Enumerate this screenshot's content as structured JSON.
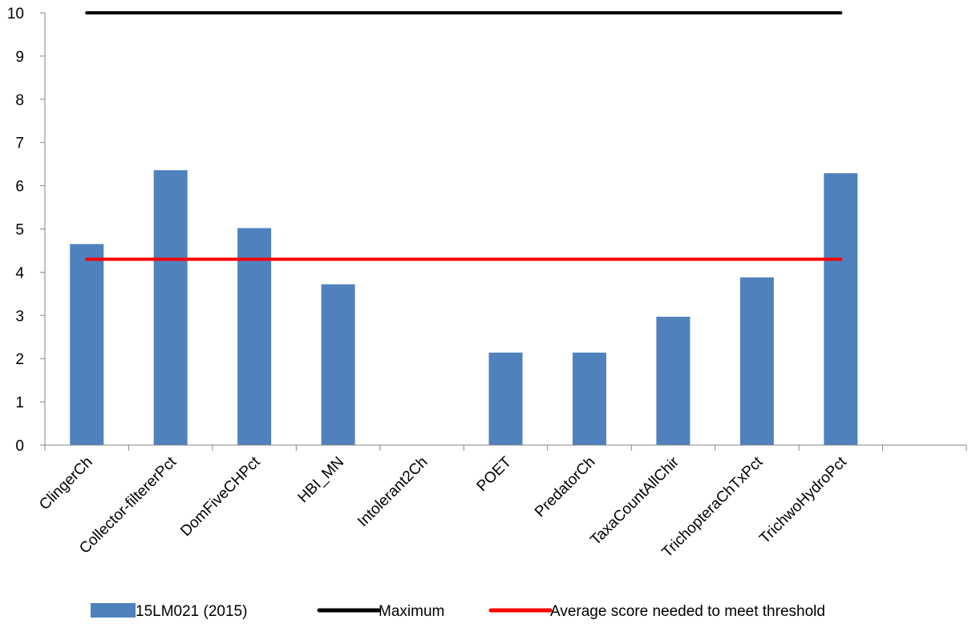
{
  "chart_data": {
    "type": "bar",
    "title": "",
    "xlabel": "",
    "ylabel": "",
    "ylim": [
      0,
      10
    ],
    "yticks": [
      0,
      1,
      2,
      3,
      4,
      5,
      6,
      7,
      8,
      9,
      10
    ],
    "grid": false,
    "legend_position": "bottom",
    "categories": [
      "ClingerCh",
      "Collector-filtererPct",
      "DomFiveCHPct",
      "HBI_MN",
      "Intolerant2Ch",
      "POET",
      "PredatorCh",
      "TaxaCountAllChir",
      "TrichopteraChTxPct",
      "TrichwoHydroPct",
      ""
    ],
    "series": [
      {
        "name": "15LM021 (2015)",
        "kind": "bar",
        "color": "#4f81bd",
        "values": [
          4.65,
          6.36,
          5.02,
          3.72,
          null,
          2.14,
          2.14,
          2.97,
          3.88,
          6.29,
          null
        ]
      },
      {
        "name": "Maximum",
        "kind": "line",
        "color": "#000000",
        "values": [
          10,
          10,
          10,
          10,
          10,
          10,
          10,
          10,
          10,
          10,
          null
        ]
      },
      {
        "name": "Average score needed to meet threshold",
        "kind": "line",
        "color": "#ff0000",
        "values": [
          4.3,
          4.3,
          4.3,
          4.3,
          4.3,
          4.3,
          4.3,
          4.3,
          4.3,
          4.3,
          null
        ]
      }
    ]
  }
}
